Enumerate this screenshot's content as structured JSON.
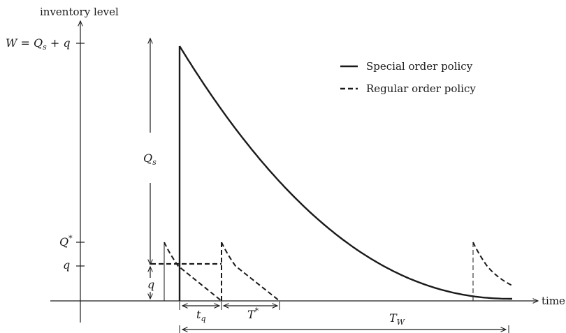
{
  "axes": {
    "y_label": "inventory level",
    "x_label": "time"
  },
  "levels": {
    "W": "W = Q",
    "W_sub": "s",
    "W_tail": " + q",
    "Qstar": "Q",
    "Qstar_sup": "*",
    "q": "q"
  },
  "dimensions": {
    "Qs": "Q",
    "Qs_sub": "s",
    "q": "q",
    "tq": "t",
    "tq_sub": "q",
    "Tstar": "T",
    "Tstar_sup": "*",
    "TW": "T",
    "TW_sub": "W"
  },
  "legend": {
    "special": "Special order policy",
    "regular": "Regular order policy"
  },
  "colors": {
    "ink": "#1a1a1a"
  }
}
